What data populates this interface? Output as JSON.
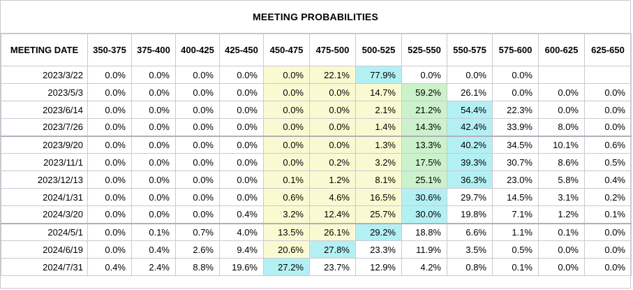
{
  "title": "MEETING PROBABILITIES",
  "headers": [
    "MEETING DATE",
    "350-375",
    "375-400",
    "400-425",
    "425-450",
    "450-475",
    "475-500",
    "500-525",
    "525-550",
    "550-575",
    "575-600",
    "600-625",
    "625-650"
  ],
  "colors": {
    "yellow": "#fafad2",
    "green": "#cbf2cb",
    "blue": "#b3f0f4"
  },
  "rows": [
    {
      "date": "2023/3/22",
      "values": [
        "0.0%",
        "0.0%",
        "0.0%",
        "0.0%",
        "0.0%",
        "22.1%",
        "77.9%",
        "0.0%",
        "0.0%",
        "0.0%",
        "",
        ""
      ],
      "colors": [
        "",
        "",
        "",
        "",
        "yellow",
        "yellow",
        "blue",
        "",
        "",
        "",
        "",
        ""
      ],
      "sep": false
    },
    {
      "date": "2023/5/3",
      "values": [
        "0.0%",
        "0.0%",
        "0.0%",
        "0.0%",
        "0.0%",
        "0.0%",
        "14.7%",
        "59.2%",
        "26.1%",
        "0.0%",
        "0.0%",
        "0.0%"
      ],
      "colors": [
        "",
        "",
        "",
        "",
        "yellow",
        "yellow",
        "yellow",
        "green",
        "",
        "",
        "",
        ""
      ],
      "sep": false
    },
    {
      "date": "2023/6/14",
      "values": [
        "0.0%",
        "0.0%",
        "0.0%",
        "0.0%",
        "0.0%",
        "0.0%",
        "2.1%",
        "21.2%",
        "54.4%",
        "22.3%",
        "0.0%",
        "0.0%"
      ],
      "colors": [
        "",
        "",
        "",
        "",
        "yellow",
        "yellow",
        "yellow",
        "green",
        "blue",
        "",
        "",
        ""
      ],
      "sep": false
    },
    {
      "date": "2023/7/26",
      "values": [
        "0.0%",
        "0.0%",
        "0.0%",
        "0.0%",
        "0.0%",
        "0.0%",
        "1.4%",
        "14.3%",
        "42.4%",
        "33.9%",
        "8.0%",
        "0.0%"
      ],
      "colors": [
        "",
        "",
        "",
        "",
        "yellow",
        "yellow",
        "yellow",
        "green",
        "blue",
        "",
        "",
        ""
      ],
      "sep": false
    },
    {
      "date": "2023/9/20",
      "values": [
        "0.0%",
        "0.0%",
        "0.0%",
        "0.0%",
        "0.0%",
        "0.0%",
        "1.3%",
        "13.3%",
        "40.2%",
        "34.5%",
        "10.1%",
        "0.6%"
      ],
      "colors": [
        "",
        "",
        "",
        "",
        "yellow",
        "yellow",
        "yellow",
        "green",
        "blue",
        "",
        "",
        ""
      ],
      "sep": true
    },
    {
      "date": "2023/11/1",
      "values": [
        "0.0%",
        "0.0%",
        "0.0%",
        "0.0%",
        "0.0%",
        "0.2%",
        "3.2%",
        "17.5%",
        "39.3%",
        "30.7%",
        "8.6%",
        "0.5%"
      ],
      "colors": [
        "",
        "",
        "",
        "",
        "yellow",
        "yellow",
        "yellow",
        "green",
        "blue",
        "",
        "",
        ""
      ],
      "sep": false
    },
    {
      "date": "2023/12/13",
      "values": [
        "0.0%",
        "0.0%",
        "0.0%",
        "0.0%",
        "0.1%",
        "1.2%",
        "8.1%",
        "25.1%",
        "36.3%",
        "23.0%",
        "5.8%",
        "0.4%"
      ],
      "colors": [
        "",
        "",
        "",
        "",
        "yellow",
        "yellow",
        "yellow",
        "green",
        "blue",
        "",
        "",
        ""
      ],
      "sep": false
    },
    {
      "date": "2024/1/31",
      "values": [
        "0.0%",
        "0.0%",
        "0.0%",
        "0.0%",
        "0.6%",
        "4.6%",
        "16.5%",
        "30.6%",
        "29.7%",
        "14.5%",
        "3.1%",
        "0.2%"
      ],
      "colors": [
        "",
        "",
        "",
        "",
        "yellow",
        "yellow",
        "yellow",
        "blue",
        "",
        "",
        "",
        ""
      ],
      "sep": false
    },
    {
      "date": "2024/3/20",
      "values": [
        "0.0%",
        "0.0%",
        "0.0%",
        "0.4%",
        "3.2%",
        "12.4%",
        "25.7%",
        "30.0%",
        "19.8%",
        "7.1%",
        "1.2%",
        "0.1%"
      ],
      "colors": [
        "",
        "",
        "",
        "",
        "yellow",
        "yellow",
        "yellow",
        "blue",
        "",
        "",
        "",
        ""
      ],
      "sep": false
    },
    {
      "date": "2024/5/1",
      "values": [
        "0.0%",
        "0.1%",
        "0.7%",
        "4.0%",
        "13.5%",
        "26.1%",
        "29.2%",
        "18.8%",
        "6.6%",
        "1.1%",
        "0.1%",
        "0.0%"
      ],
      "colors": [
        "",
        "",
        "",
        "",
        "yellow",
        "yellow",
        "blue",
        "",
        "",
        "",
        "",
        ""
      ],
      "sep": true
    },
    {
      "date": "2024/6/19",
      "values": [
        "0.0%",
        "0.4%",
        "2.6%",
        "9.4%",
        "20.6%",
        "27.8%",
        "23.3%",
        "11.9%",
        "3.5%",
        "0.5%",
        "0.0%",
        "0.0%"
      ],
      "colors": [
        "",
        "",
        "",
        "",
        "yellow",
        "blue",
        "",
        "",
        "",
        "",
        "",
        ""
      ],
      "sep": false
    },
    {
      "date": "2024/7/31",
      "values": [
        "0.4%",
        "2.4%",
        "8.8%",
        "19.6%",
        "27.2%",
        "23.7%",
        "12.9%",
        "4.2%",
        "0.8%",
        "0.1%",
        "0.0%",
        "0.0%"
      ],
      "colors": [
        "",
        "",
        "",
        "",
        "blue",
        "",
        "",
        "",
        "",
        "",
        "",
        ""
      ],
      "sep": false
    }
  ]
}
